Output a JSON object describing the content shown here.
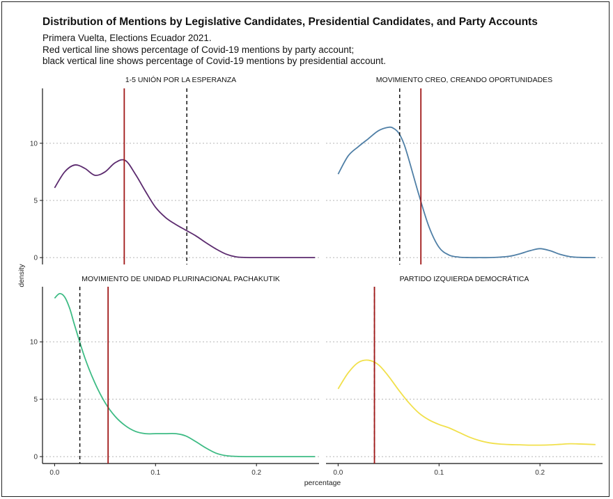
{
  "title": "Distribution of Mentions by Legislative Candidates, Presidential Candidates, and Party Accounts",
  "subtitle_lines": [
    "Primera Vuelta, Elections Ecuador 2021.",
    "Red vertical line shows percentage of Covid-19 mentions by party account;",
    "black vertical line shows percentage of Covid-19 mentions by presidential account."
  ],
  "chart_data": {
    "type": "area",
    "xlabel": "percentage",
    "ylabel": "density",
    "xlim": [
      -0.012,
      0.262
    ],
    "ylim": [
      -0.6,
      14.8
    ],
    "x_ticks": [
      0.0,
      0.1,
      0.2
    ],
    "x_tick_labels": [
      "0.0",
      "0.1",
      "0.2"
    ],
    "y_ticks": [
      0,
      5,
      10
    ],
    "y_tick_labels": [
      "0",
      "5",
      "10"
    ],
    "grid": "horizontal dotted",
    "panels": [
      {
        "label": "1-5 UNIÓN POR LA ESPERANZA",
        "color": "#5b2a6e",
        "party_line": 0.069,
        "presidential_line": 0.131,
        "x": [
          0.0,
          0.01,
          0.02,
          0.03,
          0.04,
          0.05,
          0.06,
          0.07,
          0.08,
          0.09,
          0.1,
          0.11,
          0.12,
          0.13,
          0.14,
          0.15,
          0.16,
          0.17,
          0.18,
          0.19,
          0.2,
          0.21,
          0.22,
          0.23,
          0.24,
          0.25,
          0.258
        ],
        "y": [
          6.1,
          7.5,
          8.1,
          7.8,
          7.2,
          7.5,
          8.3,
          8.5,
          7.3,
          5.8,
          4.4,
          3.5,
          2.9,
          2.4,
          1.9,
          1.3,
          0.75,
          0.3,
          0.06,
          0.01,
          0.0,
          0.0,
          0.0,
          0.0,
          0.0,
          0.0,
          0.0
        ]
      },
      {
        "label": "MOVIMIENTO CREO, CREANDO OPORTUNIDADES",
        "color": "#4f7fa6",
        "party_line": 0.082,
        "presidential_line": 0.061,
        "x": [
          0.0,
          0.01,
          0.02,
          0.03,
          0.04,
          0.05,
          0.055,
          0.06,
          0.065,
          0.07,
          0.08,
          0.09,
          0.1,
          0.11,
          0.12,
          0.13,
          0.14,
          0.15,
          0.16,
          0.17,
          0.18,
          0.19,
          0.2,
          0.21,
          0.22,
          0.23,
          0.24,
          0.255
        ],
        "y": [
          7.3,
          8.9,
          9.7,
          10.4,
          11.1,
          11.4,
          11.3,
          10.9,
          10.0,
          8.6,
          5.5,
          2.7,
          0.9,
          0.22,
          0.04,
          0.0,
          0.0,
          0.0,
          0.04,
          0.12,
          0.33,
          0.6,
          0.78,
          0.6,
          0.28,
          0.08,
          0.02,
          0.0
        ]
      },
      {
        "label": "MOVIMIENTO DE UNIDAD PLURINACIONAL PACHAKUTIK",
        "color": "#3dbb84",
        "party_line": 0.053,
        "presidential_line": 0.025,
        "x": [
          0.0,
          0.005,
          0.01,
          0.015,
          0.02,
          0.03,
          0.04,
          0.05,
          0.06,
          0.07,
          0.08,
          0.09,
          0.1,
          0.11,
          0.12,
          0.13,
          0.14,
          0.15,
          0.16,
          0.17,
          0.18,
          0.19,
          0.2,
          0.22,
          0.24,
          0.258
        ],
        "y": [
          13.8,
          14.2,
          13.9,
          12.9,
          11.4,
          8.6,
          6.4,
          4.7,
          3.5,
          2.7,
          2.2,
          2.0,
          2.0,
          2.0,
          2.0,
          1.8,
          1.3,
          0.75,
          0.3,
          0.08,
          0.02,
          0.0,
          0.0,
          0.0,
          0.0,
          0.0
        ]
      },
      {
        "label": "PARTIDO IZQUIERDA DEMOCRÁTICA",
        "color": "#f1e04b",
        "party_line": 0.036,
        "presidential_line": 0.036,
        "x": [
          0.0,
          0.01,
          0.02,
          0.03,
          0.04,
          0.05,
          0.06,
          0.07,
          0.08,
          0.09,
          0.1,
          0.11,
          0.12,
          0.13,
          0.14,
          0.15,
          0.16,
          0.17,
          0.18,
          0.19,
          0.2,
          0.21,
          0.22,
          0.23,
          0.24,
          0.255
        ],
        "y": [
          5.9,
          7.3,
          8.2,
          8.4,
          8.0,
          7.0,
          5.8,
          4.7,
          3.8,
          3.2,
          2.8,
          2.5,
          2.1,
          1.7,
          1.4,
          1.2,
          1.1,
          1.05,
          1.03,
          1.0,
          1.0,
          1.02,
          1.07,
          1.12,
          1.1,
          1.05
        ]
      }
    ]
  }
}
